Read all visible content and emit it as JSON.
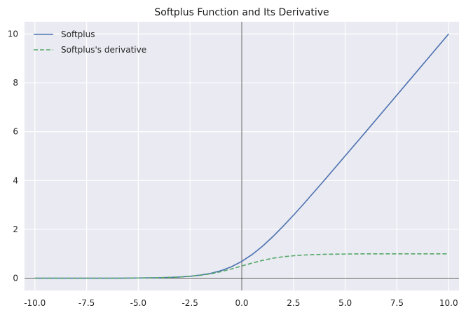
{
  "chart_data": {
    "type": "line",
    "title": "Softplus Function and Its Derivative",
    "xlabel": "",
    "ylabel": "",
    "xlim": [
      -10.5,
      10.5
    ],
    "ylim": [
      -0.5,
      10.5
    ],
    "xticks": [
      -10.0,
      -7.5,
      -5.0,
      -2.5,
      0.0,
      2.5,
      5.0,
      7.5,
      10.0
    ],
    "xtick_labels": [
      "-10.0",
      "-7.5",
      "-5.0",
      "-2.5",
      "0.0",
      "2.5",
      "5.0",
      "7.5",
      "10.0"
    ],
    "yticks": [
      0,
      2,
      4,
      6,
      8,
      10
    ],
    "ytick_labels": [
      "0",
      "2",
      "4",
      "6",
      "8",
      "10"
    ],
    "grid": true,
    "legend": "top-left",
    "axhline": 0,
    "axvline": 0,
    "series": [
      {
        "name": "Softplus",
        "color": "#4c72b0",
        "dash": "solid",
        "x": [
          -10,
          -9,
          -8,
          -7,
          -6,
          -5,
          -4,
          -3,
          -2.5,
          -2,
          -1.5,
          -1,
          -0.5,
          0,
          0.5,
          1,
          1.5,
          2,
          2.5,
          3,
          4,
          5,
          6,
          7,
          8,
          9,
          10
        ],
        "y": [
          0.0,
          0.0,
          0.0,
          0.0,
          0.0,
          0.01,
          0.02,
          0.05,
          0.08,
          0.13,
          0.2,
          0.31,
          0.47,
          0.69,
          0.97,
          1.31,
          1.7,
          2.13,
          2.58,
          3.05,
          4.02,
          5.01,
          6.0,
          7.0,
          8.0,
          9.0,
          10.0
        ]
      },
      {
        "name": "Softplus's derivative",
        "color": "#55a868",
        "dash": "dashed",
        "x": [
          -10,
          -9,
          -8,
          -7,
          -6,
          -5,
          -4,
          -3,
          -2.5,
          -2,
          -1.5,
          -1,
          -0.5,
          0,
          0.5,
          1,
          1.5,
          2,
          2.5,
          3,
          4,
          5,
          6,
          7,
          8,
          9,
          10
        ],
        "y": [
          0.0,
          0.0,
          0.0,
          0.0,
          0.0,
          0.01,
          0.02,
          0.05,
          0.08,
          0.12,
          0.18,
          0.27,
          0.38,
          0.5,
          0.62,
          0.73,
          0.82,
          0.88,
          0.92,
          0.95,
          0.98,
          0.99,
          1.0,
          1.0,
          1.0,
          1.0,
          1.0
        ]
      }
    ]
  }
}
